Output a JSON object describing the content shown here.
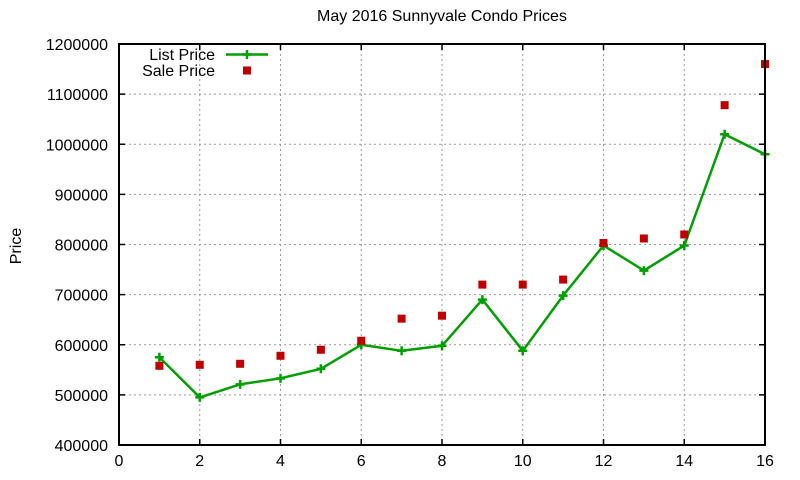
{
  "chart_data": {
    "type": "line",
    "title": "May 2016 Sunnyvale Condo Prices",
    "xlabel": "",
    "ylabel": "Price",
    "xlim": [
      0,
      16
    ],
    "ylim": [
      400000,
      1200000
    ],
    "xticks": [
      0,
      2,
      4,
      6,
      8,
      10,
      12,
      14,
      16
    ],
    "yticks": [
      400000,
      500000,
      600000,
      700000,
      800000,
      900000,
      1000000,
      1100000,
      1200000
    ],
    "grid": true,
    "grid_style": "dashed-gray",
    "legend_position": "top-left-inside",
    "background_color": "#ffffff",
    "grid_color": "#999999",
    "axis_color": "#000000",
    "x": [
      1,
      2,
      3,
      4,
      5,
      6,
      7,
      8,
      9,
      10,
      11,
      12,
      13,
      14,
      15,
      16
    ],
    "series": [
      {
        "name": "List Price",
        "type": "line+marker",
        "marker": "plus",
        "color": "#00a000",
        "values": [
          575000,
          495000,
          521000,
          533000,
          552000,
          600000,
          588000,
          598000,
          690000,
          588000,
          698000,
          798000,
          748000,
          798000,
          1020000,
          980000
        ]
      },
      {
        "name": "Sale Price",
        "type": "scatter",
        "marker": "square",
        "color": "#c00000",
        "values": [
          558000,
          560000,
          562000,
          578000,
          590000,
          608000,
          652000,
          658000,
          720000,
          720000,
          730000,
          803000,
          812000,
          820000,
          1078000,
          1160000
        ]
      }
    ]
  }
}
